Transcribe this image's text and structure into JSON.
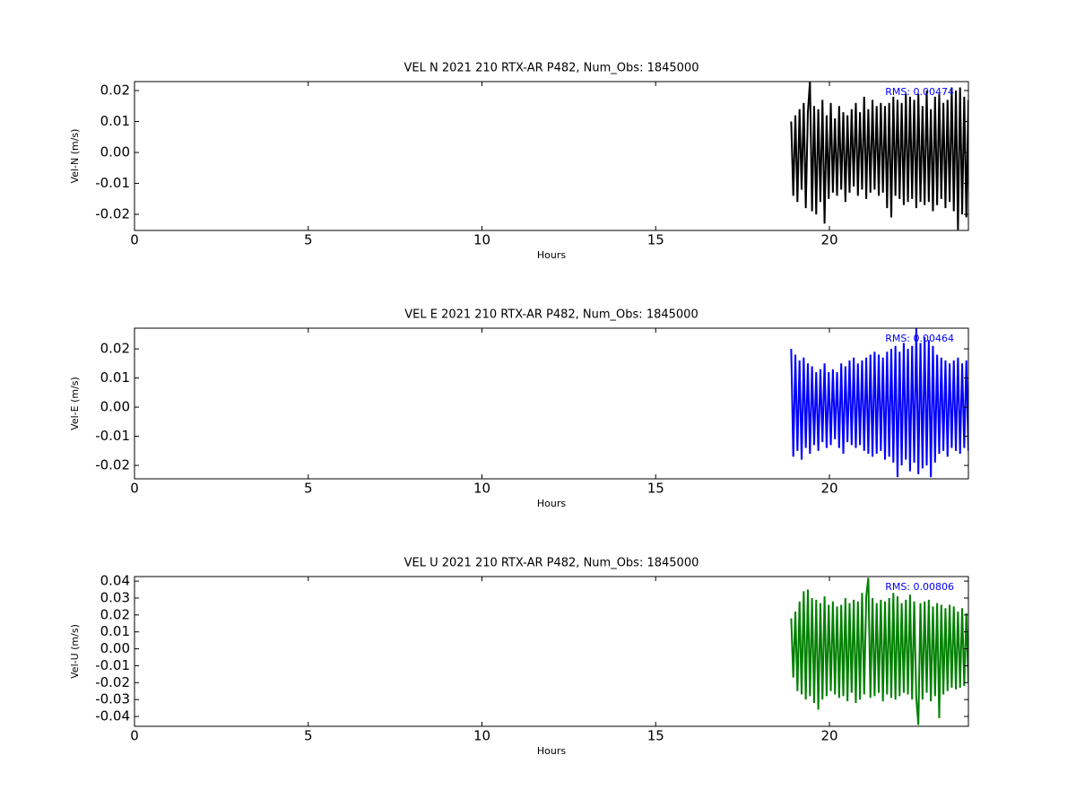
{
  "chart_data": [
    {
      "type": "line",
      "title": "VEL N 2021 210 RTX-AR  P482, Num_Obs: 1845000",
      "x_label": "Hours",
      "y_label": "Vel-N (m/s)",
      "annotation": "RMS:  0.00474",
      "annotation_color": "#0000ff",
      "color": "#000000",
      "xlim": [
        0,
        24
      ],
      "xticks": [
        0,
        5,
        10,
        15,
        20
      ],
      "ylim": [
        -0.0252,
        0.0229
      ],
      "yticks": [
        -0.02,
        -0.01,
        {
          "value": 0,
          "label": "0.00"
        },
        0.01,
        0.02
      ],
      "x": [
        18.9,
        18.96,
        19.02,
        19.08,
        19.14,
        19.2,
        19.26,
        19.32,
        19.38,
        19.44,
        19.5,
        19.56,
        19.62,
        19.68,
        19.74,
        19.8,
        19.86,
        19.92,
        19.98,
        20.04,
        20.1,
        20.16,
        20.22,
        20.28,
        20.34,
        20.4,
        20.46,
        20.52,
        20.58,
        20.64,
        20.7,
        20.76,
        20.82,
        20.88,
        20.94,
        21.0,
        21.06,
        21.12,
        21.18,
        21.24,
        21.3,
        21.36,
        21.42,
        21.48,
        21.54,
        21.6,
        21.66,
        21.72,
        21.78,
        21.84,
        21.9,
        21.96,
        22.02,
        22.08,
        22.14,
        22.2,
        22.26,
        22.32,
        22.38,
        22.44,
        22.5,
        22.56,
        22.62,
        22.68,
        22.74,
        22.8,
        22.86,
        22.92,
        22.98,
        23.04,
        23.1,
        23.16,
        23.22,
        23.28,
        23.34,
        23.4,
        23.46,
        23.52,
        23.58,
        23.64,
        23.7,
        23.76,
        23.82,
        23.88,
        23.94,
        24.0
      ],
      "values": [
        0.01,
        -0.014,
        0.012,
        -0.016,
        0.014,
        -0.012,
        0.016,
        -0.018,
        0.013,
        0.023,
        -0.019,
        0.015,
        -0.02,
        0.014,
        -0.016,
        0.017,
        -0.023,
        0.012,
        -0.015,
        0.016,
        -0.013,
        0.011,
        -0.014,
        0.015,
        -0.012,
        0.013,
        -0.016,
        0.012,
        -0.013,
        0.014,
        -0.011,
        0.016,
        -0.014,
        0.013,
        -0.012,
        0.018,
        -0.015,
        0.014,
        -0.013,
        0.017,
        -0.012,
        0.015,
        -0.014,
        0.016,
        -0.013,
        0.015,
        -0.018,
        0.016,
        -0.021,
        0.018,
        -0.014,
        0.017,
        -0.015,
        0.016,
        -0.017,
        0.019,
        -0.016,
        0.018,
        -0.015,
        0.017,
        -0.018,
        0.019,
        -0.016,
        0.015,
        -0.017,
        0.02,
        -0.016,
        0.014,
        -0.019,
        0.018,
        -0.017,
        0.019,
        -0.015,
        0.016,
        -0.018,
        0.017,
        -0.016,
        0.021,
        -0.019,
        0.02,
        -0.025,
        0.021,
        -0.02,
        0.018,
        -0.021,
        0.017
      ]
    },
    {
      "type": "line",
      "title": "VEL E 2021 210 RTX-AR  P482, Num_Obs: 1845000",
      "x_label": "Hours",
      "y_label": "Vel-E (m/s)",
      "annotation": "RMS:  0.00464",
      "annotation_color": "#0000ff",
      "color": "#0000ff",
      "xlim": [
        0,
        24
      ],
      "xticks": [
        0,
        5,
        10,
        15,
        20
      ],
      "ylim": [
        -0.0246,
        0.0271
      ],
      "yticks": [
        -0.02,
        -0.01,
        {
          "value": 0,
          "label": "0.00"
        },
        0.01,
        0.02
      ],
      "x": [
        18.9,
        18.96,
        19.02,
        19.08,
        19.14,
        19.2,
        19.26,
        19.32,
        19.38,
        19.44,
        19.5,
        19.56,
        19.62,
        19.68,
        19.74,
        19.8,
        19.86,
        19.92,
        19.98,
        20.04,
        20.1,
        20.16,
        20.22,
        20.28,
        20.34,
        20.4,
        20.46,
        20.52,
        20.58,
        20.64,
        20.7,
        20.76,
        20.82,
        20.88,
        20.94,
        21.0,
        21.06,
        21.12,
        21.18,
        21.24,
        21.3,
        21.36,
        21.42,
        21.48,
        21.54,
        21.6,
        21.66,
        21.72,
        21.78,
        21.84,
        21.9,
        21.96,
        22.02,
        22.08,
        22.14,
        22.2,
        22.26,
        22.32,
        22.38,
        22.44,
        22.5,
        22.56,
        22.62,
        22.68,
        22.74,
        22.8,
        22.86,
        22.92,
        22.98,
        23.04,
        23.1,
        23.16,
        23.22,
        23.28,
        23.34,
        23.4,
        23.46,
        23.52,
        23.58,
        23.64,
        23.7,
        23.76,
        23.82,
        23.88,
        23.94,
        24.0
      ],
      "values": [
        0.02,
        -0.017,
        0.018,
        -0.015,
        0.016,
        -0.018,
        0.017,
        -0.014,
        0.015,
        -0.016,
        0.014,
        -0.013,
        0.012,
        -0.015,
        0.013,
        -0.012,
        0.015,
        -0.014,
        0.012,
        -0.013,
        0.013,
        -0.011,
        0.012,
        -0.014,
        0.015,
        -0.016,
        0.014,
        -0.012,
        0.016,
        -0.013,
        0.017,
        -0.014,
        0.015,
        -0.013,
        0.016,
        -0.015,
        0.017,
        -0.016,
        0.018,
        -0.017,
        0.019,
        -0.016,
        0.018,
        -0.015,
        0.017,
        -0.018,
        0.019,
        -0.017,
        0.02,
        -0.019,
        0.021,
        -0.024,
        0.019,
        -0.02,
        0.022,
        -0.018,
        0.02,
        -0.022,
        0.021,
        -0.019,
        0.027,
        -0.023,
        0.022,
        -0.021,
        0.024,
        -0.02,
        0.023,
        -0.024,
        0.021,
        -0.019,
        0.018,
        -0.016,
        0.017,
        -0.015,
        0.016,
        -0.017,
        0.015,
        -0.014,
        0.016,
        -0.015,
        0.017,
        -0.016,
        0.015,
        -0.014,
        0.016,
        -0.015
      ]
    },
    {
      "type": "line",
      "title": "VEL U 2021 210 RTX-AR  P482, Num_Obs: 1845000",
      "x_label": "Hours",
      "y_label": "Vel-U (m/s)",
      "annotation": "RMS:  0.00806",
      "annotation_color": "#0000ff",
      "color": "#008000",
      "xlim": [
        0,
        24
      ],
      "xticks": [
        0,
        5,
        10,
        15,
        20
      ],
      "ylim": [
        -0.0458,
        0.0427
      ],
      "yticks": [
        -0.04,
        -0.03,
        -0.02,
        -0.01,
        {
          "value": 0,
          "label": "0.00"
        },
        0.01,
        0.02,
        0.03,
        0.04
      ],
      "x": [
        18.9,
        18.96,
        19.02,
        19.08,
        19.14,
        19.2,
        19.26,
        19.32,
        19.38,
        19.44,
        19.5,
        19.56,
        19.62,
        19.68,
        19.74,
        19.8,
        19.86,
        19.92,
        19.98,
        20.04,
        20.1,
        20.16,
        20.22,
        20.28,
        20.34,
        20.4,
        20.46,
        20.52,
        20.58,
        20.64,
        20.7,
        20.76,
        20.82,
        20.88,
        20.94,
        21.0,
        21.06,
        21.12,
        21.18,
        21.24,
        21.3,
        21.36,
        21.42,
        21.48,
        21.54,
        21.6,
        21.66,
        21.72,
        21.78,
        21.84,
        21.9,
        21.96,
        22.02,
        22.08,
        22.14,
        22.2,
        22.26,
        22.32,
        22.38,
        22.44,
        22.5,
        22.56,
        22.62,
        22.68,
        22.74,
        22.8,
        22.86,
        22.92,
        22.98,
        23.04,
        23.1,
        23.16,
        23.22,
        23.28,
        23.34,
        23.4,
        23.46,
        23.52,
        23.58,
        23.64,
        23.7,
        23.76,
        23.82,
        23.88,
        23.94,
        24.0
      ],
      "values": [
        0.018,
        -0.017,
        0.022,
        -0.025,
        0.028,
        -0.027,
        0.034,
        -0.03,
        0.035,
        -0.028,
        0.03,
        -0.032,
        0.029,
        -0.036,
        0.027,
        -0.03,
        0.031,
        -0.028,
        0.026,
        -0.025,
        0.028,
        -0.027,
        0.025,
        -0.029,
        0.026,
        -0.028,
        0.03,
        -0.031,
        0.027,
        -0.026,
        0.029,
        -0.032,
        0.028,
        -0.03,
        0.033,
        -0.027,
        0.031,
        0.042,
        -0.029,
        0.03,
        -0.028,
        0.027,
        -0.026,
        0.029,
        -0.031,
        0.028,
        -0.027,
        0.03,
        -0.029,
        0.033,
        -0.03,
        0.031,
        -0.028,
        0.027,
        -0.026,
        0.029,
        -0.027,
        0.032,
        -0.03,
        0.028,
        -0.029,
        -0.045,
        0.027,
        -0.03,
        0.028,
        -0.026,
        0.029,
        -0.031,
        0.025,
        -0.028,
        0.027,
        -0.041,
        0.026,
        -0.027,
        0.024,
        -0.025,
        0.026,
        -0.023,
        0.025,
        -0.024,
        0.022,
        -0.023,
        0.024,
        -0.022,
        0.021,
        -0.02
      ]
    }
  ]
}
